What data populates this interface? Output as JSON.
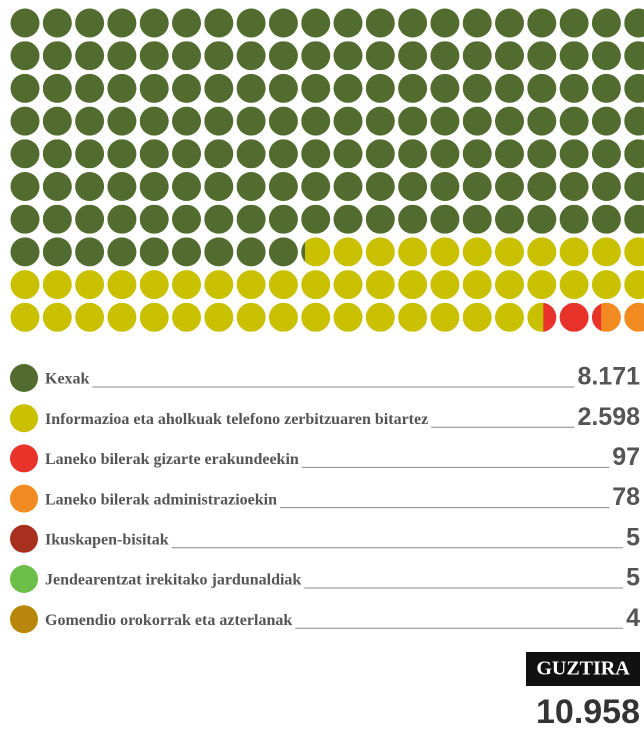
{
  "chart_data": {
    "type": "waffle",
    "series": [
      {
        "name": "Kexak",
        "color": "#526b2e",
        "values": [
          8171
        ],
        "value_labels": [
          "8.171"
        ]
      },
      {
        "name": "Informazioa eta aholkuak telefono zerbitzuaren bitartez",
        "color": "#c9c000",
        "values": [
          2598
        ],
        "value_labels": [
          "2.598"
        ]
      },
      {
        "name": "Laneko bilerak gizarte erakundeekin",
        "color": "#e8332a",
        "values": [
          97
        ],
        "value_labels": [
          "97"
        ]
      },
      {
        "name": "Laneko bilerak administrazioekin",
        "color": "#f28a22",
        "values": [
          78
        ],
        "value_labels": [
          "78"
        ]
      },
      {
        "name": "Ikuskapen-bisitak",
        "color": "#a8301e",
        "values": [
          5
        ],
        "value_labels": [
          "5"
        ]
      },
      {
        "name": "Jendearentzat irekitako jardunaldiak",
        "color": "#6bbf48",
        "values": [
          5
        ],
        "value_labels": [
          "5"
        ]
      },
      {
        "name": "Gomendio orokorrak eta azterlanak",
        "color": "#b8860b",
        "values": [
          4
        ],
        "value_labels": [
          "4"
        ]
      }
    ],
    "total": {
      "label": "GUZTIRA",
      "value": 10958,
      "value_label": "10.958"
    }
  }
}
